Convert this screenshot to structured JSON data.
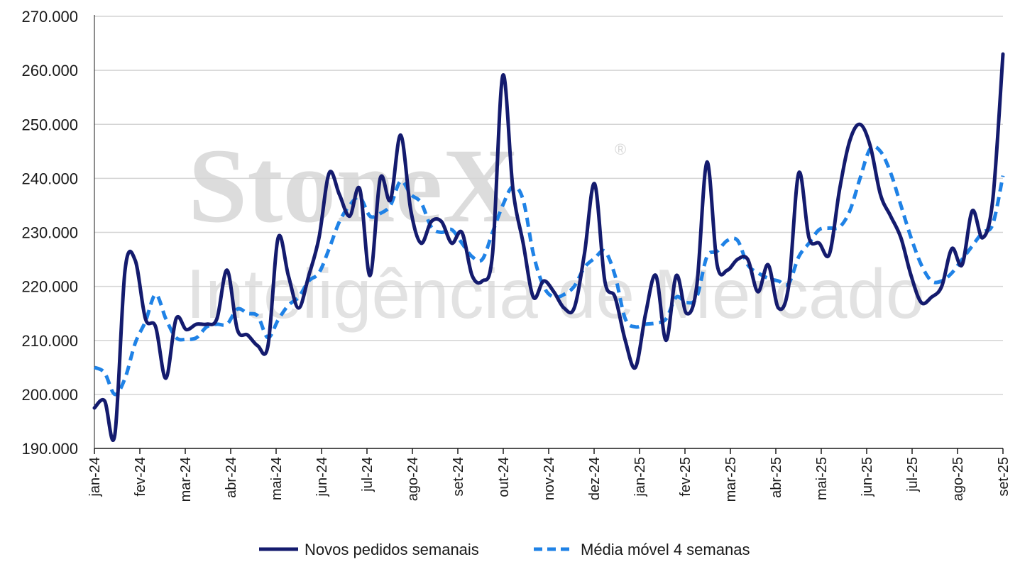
{
  "watermark": {
    "brand": "StoneX",
    "registered": "®",
    "tagline": "Inteligência de Mercado"
  },
  "colors": {
    "series1": "#141b6e",
    "series2": "#1f82e6",
    "grid": "#d4d4d4",
    "axis": "#1a1a1a"
  },
  "chart_data": {
    "type": "line",
    "title": "",
    "xlabel": "",
    "ylabel": "",
    "ylim": [
      190000,
      270000
    ],
    "yticks": [
      190000,
      200000,
      210000,
      220000,
      230000,
      240000,
      250000,
      260000,
      270000
    ],
    "ytick_labels": [
      "190.000",
      "200.000",
      "210.000",
      "220.000",
      "230.000",
      "240.000",
      "250.000",
      "260.000",
      "270.000"
    ],
    "x_labels": [
      "jan-24",
      "fev-24",
      "mar-24",
      "abr-24",
      "mai-24",
      "jun-24",
      "jul-24",
      "ago-24",
      "set-24",
      "out-24",
      "nov-24",
      "dez-24",
      "jan-25",
      "fev-25",
      "mar-25",
      "abr-25",
      "mai-25",
      "jun-25",
      "jul-25",
      "ago-25",
      "set-25"
    ],
    "grid": "horizontal",
    "legend_position": "bottom",
    "series": [
      {
        "name": "Novos pedidos semanais",
        "style": "solid",
        "values": [
          197500,
          198800,
          192500,
          223000,
          224800,
          214000,
          212500,
          203000,
          214000,
          212000,
          213000,
          213000,
          214000,
          223000,
          212000,
          211000,
          209000,
          209000,
          229000,
          222000,
          216000,
          222000,
          229000,
          241000,
          237000,
          233000,
          238000,
          222000,
          240000,
          236000,
          248000,
          234000,
          228000,
          232000,
          232000,
          228000,
          230000,
          222000,
          221000,
          226000,
          259000,
          238000,
          228000,
          218000,
          221000,
          219000,
          216000,
          216000,
          226000,
          239000,
          221000,
          218000,
          210000,
          205000,
          215000,
          222000,
          210000,
          222000,
          215000,
          220000,
          243000,
          224000,
          223000,
          225000,
          225000,
          219000,
          224000,
          216000,
          220000,
          241000,
          229000,
          228000,
          226000,
          238000,
          247000,
          250000,
          246000,
          237000,
          233000,
          229000,
          222000,
          217000,
          218000,
          220000,
          227000,
          224000,
          234000,
          229000,
          236000,
          263000
        ]
      },
      {
        "name": "Média móvel 4 semanas",
        "style": "dashed",
        "values": [
          205000,
          204000,
          200000,
          203000,
          209500,
          213500,
          218500,
          214000,
          210500,
          210200,
          210500,
          212500,
          213000,
          213000,
          215800,
          215000,
          214500,
          210500,
          213800,
          216500,
          218000,
          221000,
          222500,
          227000,
          232000,
          235000,
          236500,
          233000,
          233500,
          235000,
          239500,
          237000,
          235500,
          231000,
          230000,
          230500,
          228000,
          225500,
          225000,
          230000,
          235000,
          238500,
          236000,
          226000,
          220000,
          218000,
          218500,
          220000,
          223500,
          225200,
          226500,
          222000,
          214000,
          212500,
          213000,
          213200,
          214000,
          218000,
          217000,
          218000,
          225500,
          226500,
          228500,
          228500,
          224000,
          222500,
          221500,
          221000,
          220500,
          225500,
          228000,
          230500,
          230800,
          231000,
          234000,
          240000,
          245500,
          245000,
          241000,
          235000,
          229000,
          224000,
          221000,
          221000,
          222500,
          225000,
          227500,
          230000,
          231500,
          240500
        ]
      }
    ]
  }
}
